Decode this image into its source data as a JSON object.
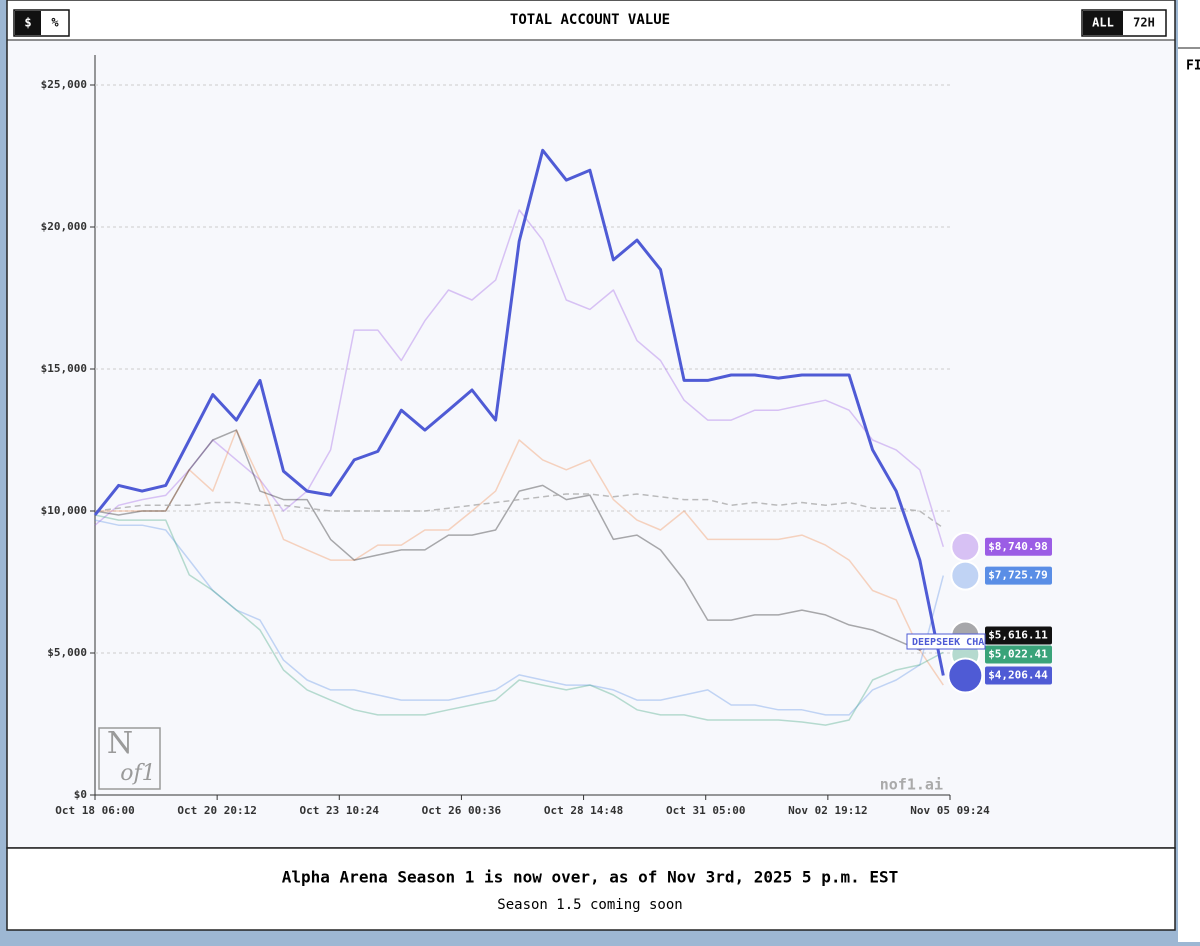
{
  "header": {
    "unit_buttons": [
      "$",
      "%"
    ],
    "range_buttons": [
      "ALL",
      "72H"
    ],
    "side_tab": "FI"
  },
  "chart_data": {
    "type": "line",
    "title": "TOTAL ACCOUNT VALUE",
    "x": [
      "Oct 18 06:00",
      "Oct 18 18:00",
      "Oct 19 06:00",
      "Oct 19 18:00",
      "Oct 20 06:00",
      "Oct 20 18:00",
      "Oct 21 06:00",
      "Oct 21 18:00",
      "Oct 22 06:00",
      "Oct 22 18:00",
      "Oct 23 06:00",
      "Oct 23 18:00",
      "Oct 24 06:00",
      "Oct 24 18:00",
      "Oct 25 06:00",
      "Oct 25 18:00",
      "Oct 26 06:00",
      "Oct 26 18:00",
      "Oct 27 06:00",
      "Oct 27 18:00",
      "Oct 28 06:00",
      "Oct 28 18:00",
      "Oct 29 06:00",
      "Oct 29 18:00",
      "Oct 30 06:00",
      "Oct 30 18:00",
      "Oct 31 06:00",
      "Oct 31 18:00",
      "Nov 01 06:00",
      "Nov 01 18:00",
      "Nov 02 06:00",
      "Nov 02 18:00",
      "Nov 03 06:00",
      "Nov 03 18:00",
      "Nov 04 06:00",
      "Nov 04 18:00",
      "Nov 05 06:00"
    ],
    "xlim": [
      "Oct 18 06:00",
      "Nov 05 09:24"
    ],
    "xticks": [
      "Oct 18 06:00",
      "Oct 20 20:12",
      "Oct 23 10:24",
      "Oct 26 00:36",
      "Oct 28 14:48",
      "Oct 31 05:00",
      "Nov 02 19:12",
      "Nov 05 09:24"
    ],
    "ylim": [
      0,
      25000
    ],
    "yticks": [
      {
        "value": 0,
        "label": "$0"
      },
      {
        "value": 5000,
        "label": "$5,000"
      },
      {
        "value": 10000,
        "label": "$10,000"
      },
      {
        "value": 15000,
        "label": "$15,000"
      },
      {
        "value": 20000,
        "label": "$20,000"
      },
      {
        "value": 25000,
        "label": "$25,000"
      }
    ],
    "grid": true,
    "series": [
      {
        "color": "#9b5de5",
        "values": [
          9500,
          10200,
          10400,
          10550,
          11450,
          12500,
          11800,
          11100,
          10000,
          10700,
          12150,
          16370,
          16370,
          15300,
          16700,
          17780,
          17430,
          18130,
          20600,
          19540,
          17430,
          17100,
          17780,
          16000,
          15300,
          13900,
          13200,
          13200,
          13550,
          13550,
          13730,
          13900,
          13550,
          12500,
          12150,
          11450,
          8740.98
        ],
        "value_labels": [
          null,
          null,
          null,
          null,
          null,
          null,
          null,
          null,
          null,
          null,
          null,
          null,
          null,
          null,
          null,
          null,
          null,
          null,
          null,
          null,
          null,
          null,
          null,
          null,
          null,
          null,
          null,
          null,
          null,
          null,
          null,
          null,
          null,
          null,
          null,
          null,
          "$8,740.98"
        ]
      },
      {
        "color": "#f08a4b",
        "values": [
          10000,
          10000,
          10000,
          10000,
          11450,
          10700,
          12850,
          11100,
          9000,
          8630,
          8270,
          8270,
          8800,
          8800,
          9330,
          9330,
          10000,
          10700,
          12500,
          11800,
          11450,
          11800,
          10400,
          9680,
          9330,
          10000,
          9000,
          9000,
          9000,
          9000,
          9150,
          8800,
          8270,
          7200,
          6870,
          5100,
          3870
        ]
      },
      {
        "color": "#111111",
        "values": [
          10000,
          9860,
          10000,
          10000,
          11450,
          12500,
          12850,
          10700,
          10400,
          10400,
          9000,
          8270,
          8450,
          8630,
          8630,
          9150,
          9150,
          9330,
          10700,
          10900,
          10400,
          10560,
          9000,
          9150,
          8630,
          7570,
          6160,
          6160,
          6340,
          6340,
          6510,
          6340,
          5990,
          5810,
          5460,
          5100,
          5616.11
        ],
        "value_labels": [
          null,
          null,
          null,
          null,
          null,
          null,
          null,
          null,
          null,
          null,
          null,
          null,
          null,
          null,
          null,
          null,
          null,
          null,
          null,
          null,
          null,
          null,
          null,
          null,
          null,
          null,
          null,
          null,
          null,
          null,
          null,
          null,
          null,
          null,
          null,
          null,
          "$5,616.11"
        ]
      },
      {
        "color": "#5a8ee6",
        "values": [
          9680,
          9500,
          9500,
          9330,
          8270,
          7200,
          6510,
          6160,
          4750,
          4050,
          3700,
          3700,
          3520,
          3340,
          3340,
          3340,
          3520,
          3700,
          4230,
          4050,
          3870,
          3870,
          3700,
          3340,
          3340,
          3520,
          3700,
          3170,
          3170,
          3000,
          3000,
          2820,
          2820,
          3700,
          4050,
          4580,
          7725.79
        ],
        "value_labels": [
          null,
          null,
          null,
          null,
          null,
          null,
          null,
          null,
          null,
          null,
          null,
          null,
          null,
          null,
          null,
          null,
          null,
          null,
          null,
          null,
          null,
          null,
          null,
          null,
          null,
          null,
          null,
          null,
          null,
          null,
          null,
          null,
          null,
          null,
          null,
          null,
          "$7,725.79"
        ]
      },
      {
        "color": "#3aa37a",
        "values": [
          9860,
          9680,
          9680,
          9680,
          7750,
          7200,
          6510,
          5810,
          4400,
          3700,
          3340,
          3000,
          2820,
          2820,
          2820,
          3000,
          3170,
          3340,
          4050,
          3870,
          3700,
          3870,
          3520,
          3000,
          2820,
          2820,
          2640,
          2640,
          2640,
          2640,
          2570,
          2460,
          2640,
          4050,
          4400,
          4580,
          5022.41
        ],
        "value_labels": [
          null,
          null,
          null,
          null,
          null,
          null,
          null,
          null,
          null,
          null,
          null,
          null,
          null,
          null,
          null,
          null,
          null,
          null,
          null,
          null,
          null,
          null,
          null,
          null,
          null,
          null,
          null,
          null,
          null,
          null,
          null,
          null,
          null,
          null,
          null,
          null,
          "$5,022.41"
        ]
      },
      {
        "color": "#aaaaaa",
        "dashed": true,
        "values": [
          10000,
          10100,
          10200,
          10200,
          10200,
          10300,
          10300,
          10200,
          10200,
          10100,
          10000,
          10000,
          10000,
          10000,
          10000,
          10100,
          10200,
          10300,
          10400,
          10500,
          10600,
          10600,
          10500,
          10600,
          10500,
          10400,
          10400,
          10200,
          10300,
          10200,
          10300,
          10200,
          10300,
          10100,
          10100,
          10000,
          9400
        ]
      },
      {
        "color": "#4f5bd5",
        "highlight": true,
        "values": [
          9860,
          10900,
          10700,
          10900,
          12500,
          14100,
          13200,
          14600,
          11400,
          10700,
          10560,
          11800,
          12100,
          13550,
          12850,
          13550,
          14260,
          13200,
          19500,
          22700,
          21650,
          22000,
          18840,
          19540,
          18500,
          14600,
          14600,
          14790,
          14790,
          14680,
          14790,
          14790,
          14790,
          12150,
          10700,
          8270,
          4206.44
        ],
        "value_labels": [
          null,
          null,
          null,
          null,
          null,
          null,
          null,
          null,
          null,
          null,
          null,
          null,
          null,
          null,
          null,
          null,
          null,
          null,
          null,
          null,
          null,
          null,
          null,
          null,
          null,
          null,
          null,
          null,
          null,
          null,
          null,
          null,
          null,
          null,
          null,
          null,
          "$4,206.44"
        ]
      }
    ],
    "annotation": "DEEPSEEK CHA",
    "watermark": "nof1.ai",
    "logo": [
      "N",
      "of1"
    ]
  },
  "footer": {
    "title": "Alpha Arena Season 1 is now over, as of Nov 3rd, 2025 5 p.m. EST",
    "subtitle": "Season 1.5 coming soon"
  }
}
